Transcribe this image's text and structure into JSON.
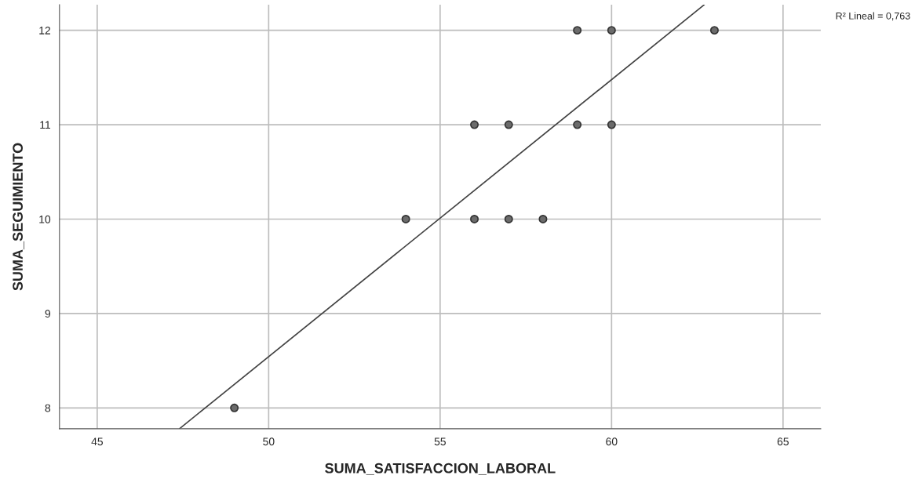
{
  "chart_data": {
    "type": "scatter",
    "xlabel": "SUMA_SATISFACCION_LABORAL",
    "ylabel": "SUMA_SEGUIMIENTO",
    "xlim": [
      43.9,
      66.1
    ],
    "xticks": [
      45,
      50,
      55,
      60,
      65
    ],
    "ylim": [
      7.78,
      12.27
    ],
    "yticks": [
      8,
      9,
      10,
      11,
      12
    ],
    "grid": true,
    "legend": false,
    "marker": "circle",
    "series": [
      {
        "color": "#6b6b6b",
        "x": [
          49,
          54,
          56,
          57,
          58,
          56,
          57,
          59,
          60,
          59,
          60,
          63
        ],
        "values": [
          8,
          10,
          10,
          10,
          10,
          11,
          11,
          11,
          11,
          12,
          12,
          12
        ]
      },
      {
        "type": "line",
        "color": "#444444",
        "x": [
          47.4,
          62.7
        ],
        "values": [
          7.78,
          12.27
        ],
        "marker": "none",
        "line_style": "solid"
      }
    ],
    "annotations": [
      "R² Lineal = 0,763"
    ]
  }
}
